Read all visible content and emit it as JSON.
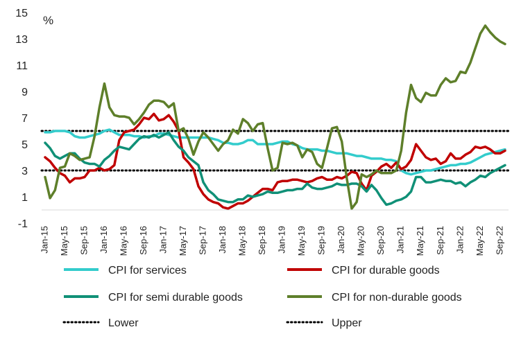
{
  "chart_data": {
    "type": "line",
    "unit_label": "%",
    "ylim": [
      -1,
      15
    ],
    "yticks": [
      -1,
      1,
      3,
      5,
      7,
      9,
      11,
      13,
      15
    ],
    "x_tick_labels": [
      "Jan-15",
      "May-15",
      "Sep-15",
      "Jan-16",
      "May-16",
      "Sep-16",
      "Jan-17",
      "May-17",
      "Sep-17",
      "Jan-18",
      "May-18",
      "Sep-18",
      "Jan-19",
      "May-19",
      "Sep-19",
      "Jan-20",
      "May-20",
      "Sep-20",
      "Jan-21",
      "May-21",
      "Sep-21",
      "Jan-22",
      "May-22",
      "Sep-22"
    ],
    "x_start": "Jan-15",
    "x_end": "Oct-22",
    "grid": false,
    "legend_position": "bottom",
    "series": [
      {
        "name": "CPI for services",
        "color": "#33CCCC",
        "style": "solid",
        "values": [
          5.9,
          5.9,
          6.0,
          6.0,
          6.0,
          5.9,
          5.6,
          5.5,
          5.5,
          5.6,
          5.7,
          5.8,
          6.0,
          6.1,
          5.9,
          5.7,
          5.7,
          5.7,
          5.6,
          5.6,
          5.5,
          5.6,
          5.6,
          5.8,
          5.8,
          5.7,
          5.6,
          5.5,
          5.5,
          5.5,
          5.5,
          5.5,
          5.5,
          5.5,
          5.4,
          5.3,
          5.1,
          5.1,
          5.0,
          5.0,
          5.1,
          5.3,
          5.3,
          5.0,
          5.0,
          5.0,
          5.0,
          5.1,
          5.2,
          5.2,
          5.0,
          4.9,
          4.7,
          4.6,
          4.6,
          4.6,
          4.5,
          4.5,
          4.4,
          4.3,
          4.3,
          4.3,
          4.2,
          4.1,
          4.1,
          4.0,
          3.9,
          3.9,
          3.9,
          3.8,
          3.8,
          3.7,
          3.0,
          2.8,
          2.7,
          2.8,
          2.9,
          3.0,
          3.0,
          3.1,
          3.2,
          3.3,
          3.4,
          3.4,
          3.5,
          3.5,
          3.6,
          3.8,
          4.0,
          4.2,
          4.3,
          4.4,
          4.5,
          4.6
        ]
      },
      {
        "name": "CPI for durable goods",
        "color": "#C00000",
        "style": "solid",
        "values": [
          4.0,
          3.7,
          3.2,
          2.8,
          2.6,
          2.1,
          2.4,
          2.4,
          2.5,
          3.0,
          3.0,
          3.2,
          3.0,
          3.1,
          3.4,
          5.3,
          5.9,
          6.0,
          6.1,
          6.5,
          7.0,
          6.9,
          7.3,
          6.8,
          6.9,
          7.2,
          6.7,
          6.0,
          4.0,
          3.6,
          3.1,
          1.8,
          1.2,
          0.8,
          0.6,
          0.5,
          0.2,
          0.1,
          0.3,
          0.5,
          0.5,
          0.7,
          1.0,
          1.3,
          1.6,
          1.6,
          1.5,
          2.1,
          2.2,
          2.2,
          2.3,
          2.3,
          2.2,
          2.1,
          2.2,
          2.4,
          2.5,
          2.3,
          2.3,
          2.5,
          2.4,
          2.6,
          2.9,
          2.8,
          2.0,
          1.5,
          2.6,
          2.9,
          3.3,
          3.5,
          3.2,
          3.6,
          3.1,
          3.3,
          3.8,
          5.0,
          4.5,
          4.0,
          3.8,
          3.9,
          3.5,
          3.7,
          4.3,
          3.9,
          3.9,
          4.2,
          4.4,
          4.8,
          4.7,
          4.8,
          4.6,
          4.3,
          4.3,
          4.5
        ]
      },
      {
        "name": "CPI for semi durable goods",
        "color": "#109077",
        "style": "solid",
        "values": [
          5.1,
          4.7,
          4.1,
          3.9,
          4.1,
          4.3,
          4.3,
          3.9,
          3.6,
          3.5,
          3.5,
          3.3,
          3.8,
          4.1,
          4.5,
          4.8,
          4.7,
          4.6,
          5.0,
          5.4,
          5.6,
          5.5,
          5.7,
          5.5,
          5.7,
          5.9,
          5.3,
          4.8,
          4.5,
          4.0,
          3.7,
          3.4,
          2.1,
          1.5,
          1.2,
          0.8,
          0.7,
          0.6,
          0.6,
          0.8,
          0.8,
          1.1,
          1.0,
          1.1,
          1.2,
          1.4,
          1.3,
          1.3,
          1.4,
          1.5,
          1.5,
          1.6,
          1.6,
          2.0,
          1.7,
          1.6,
          1.6,
          1.7,
          1.8,
          2.0,
          1.9,
          1.9,
          2.0,
          2.0,
          1.8,
          1.4,
          1.9,
          1.5,
          0.9,
          0.4,
          0.5,
          0.7,
          0.8,
          1.0,
          1.4,
          2.5,
          2.5,
          2.1,
          2.1,
          2.2,
          2.3,
          2.2,
          2.2,
          2.0,
          2.1,
          1.8,
          2.1,
          2.3,
          2.6,
          2.5,
          2.8,
          3.0,
          3.2,
          3.4
        ]
      },
      {
        "name": "CPI for non-durable goods",
        "color": "#5E7F2A",
        "style": "solid",
        "values": [
          2.5,
          0.9,
          1.5,
          3.2,
          3.3,
          4.3,
          4.1,
          3.8,
          3.9,
          4.0,
          5.6,
          7.8,
          9.6,
          7.8,
          7.2,
          7.1,
          7.1,
          7.0,
          6.5,
          6.9,
          7.4,
          8.0,
          8.3,
          8.3,
          8.2,
          7.8,
          8.1,
          6.0,
          6.2,
          5.4,
          4.2,
          5.2,
          5.9,
          5.5,
          5.0,
          4.5,
          5.0,
          5.3,
          6.1,
          5.8,
          6.9,
          6.6,
          6.0,
          6.5,
          6.6,
          4.7,
          3.0,
          3.2,
          5.1,
          5.0,
          5.1,
          4.9,
          4.0,
          4.6,
          4.4,
          3.5,
          3.2,
          4.7,
          6.2,
          6.3,
          5.2,
          2.4,
          0.1,
          0.6,
          2.7,
          2.5,
          2.7,
          3.0,
          2.8,
          2.8,
          2.8,
          3.0,
          4.5,
          7.4,
          9.5,
          8.5,
          8.2,
          8.9,
          8.7,
          8.7,
          9.5,
          10.0,
          9.7,
          9.8,
          10.5,
          10.4,
          11.2,
          12.3,
          13.4,
          14.0,
          13.5,
          13.1,
          12.8,
          12.6
        ]
      },
      {
        "name": "Lower",
        "color": "#000000",
        "style": "dotted",
        "values": [
          3,
          3
        ]
      },
      {
        "name": "Upper",
        "color": "#000000",
        "style": "dotted",
        "values": [
          6,
          6
        ]
      }
    ]
  }
}
